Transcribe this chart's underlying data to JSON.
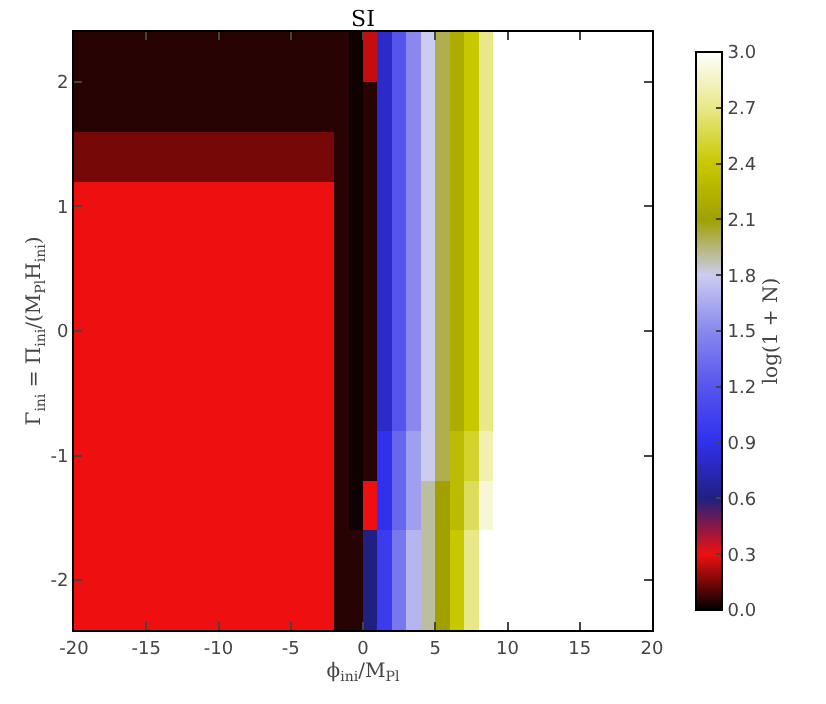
{
  "chart_data": {
    "type": "heatmap",
    "title": "SI",
    "xlabel": "ϕ$_{ini}$/M$_{Pl}$",
    "ylabel": "Γ$_{ini}$ = Π$_{ini}$/(M$_{Pl}$H$_{ini}$)",
    "clabel": "log(1 + N)",
    "x": [
      -19.5,
      -18.5,
      -17.5,
      -16.5,
      -15.5,
      -14.5,
      -13.5,
      -12.5,
      -11.5,
      -10.5,
      -9.5,
      -8.5,
      -7.5,
      -6.5,
      -5.5,
      -4.5,
      -3.5,
      -2.5,
      -1.5,
      -0.5,
      0.5,
      1.5,
      2.5,
      3.5,
      4.5,
      5.5,
      6.5,
      7.5,
      8.5,
      9.5,
      10.5,
      11.5,
      12.5,
      13.5,
      14.5,
      15.5,
      16.5,
      17.5,
      18.5,
      19.5
    ],
    "y": [
      2.2,
      1.8,
      1.4,
      1.0,
      0.6,
      0.2,
      -0.2,
      -0.6,
      -1.0,
      -1.4,
      -1.8,
      -2.2
    ],
    "cells": [
      [
        0.05,
        0.05,
        0.05,
        0.05,
        0.05,
        0.05,
        0.05,
        0.05,
        0.05,
        0.05,
        0.05,
        0.05,
        0.05,
        0.05,
        0.05,
        0.05,
        0.05,
        0.05,
        0.05,
        0.02,
        0.25,
        0.8,
        1.2,
        1.5,
        1.8,
        2.0,
        2.2,
        2.4,
        2.7,
        3.0,
        3.0,
        3.0,
        3.0,
        3.0,
        3.0,
        3.0,
        3.0,
        3.0,
        3.0,
        3.0
      ],
      [
        0.05,
        0.05,
        0.05,
        0.05,
        0.05,
        0.05,
        0.05,
        0.05,
        0.05,
        0.05,
        0.05,
        0.05,
        0.05,
        0.05,
        0.05,
        0.05,
        0.05,
        0.05,
        0.05,
        0.02,
        0.05,
        0.8,
        1.2,
        1.5,
        1.8,
        2.0,
        2.2,
        2.4,
        2.7,
        3.0,
        3.0,
        3.0,
        3.0,
        3.0,
        3.0,
        3.0,
        3.0,
        3.0,
        3.0,
        3.0
      ],
      [
        0.15,
        0.15,
        0.15,
        0.15,
        0.15,
        0.15,
        0.15,
        0.15,
        0.15,
        0.15,
        0.15,
        0.15,
        0.15,
        0.15,
        0.15,
        0.15,
        0.15,
        0.15,
        0.05,
        0.02,
        0.05,
        0.8,
        1.2,
        1.5,
        1.8,
        2.0,
        2.2,
        2.4,
        2.7,
        3.0,
        3.0,
        3.0,
        3.0,
        3.0,
        3.0,
        3.0,
        3.0,
        3.0,
        3.0,
        3.0
      ],
      [
        0.3,
        0.3,
        0.3,
        0.3,
        0.3,
        0.3,
        0.3,
        0.3,
        0.3,
        0.3,
        0.3,
        0.3,
        0.3,
        0.3,
        0.3,
        0.3,
        0.3,
        0.3,
        0.05,
        0.02,
        0.05,
        0.8,
        1.2,
        1.5,
        1.8,
        2.0,
        2.2,
        2.4,
        2.7,
        3.0,
        3.0,
        3.0,
        3.0,
        3.0,
        3.0,
        3.0,
        3.0,
        3.0,
        3.0,
        3.0
      ],
      [
        0.3,
        0.3,
        0.3,
        0.3,
        0.3,
        0.3,
        0.3,
        0.3,
        0.3,
        0.3,
        0.3,
        0.3,
        0.3,
        0.3,
        0.3,
        0.3,
        0.3,
        0.3,
        0.05,
        0.02,
        0.05,
        0.8,
        1.2,
        1.5,
        1.8,
        2.0,
        2.2,
        2.4,
        2.7,
        3.0,
        3.0,
        3.0,
        3.0,
        3.0,
        3.0,
        3.0,
        3.0,
        3.0,
        3.0,
        3.0
      ],
      [
        0.3,
        0.3,
        0.3,
        0.3,
        0.3,
        0.3,
        0.3,
        0.3,
        0.3,
        0.3,
        0.3,
        0.3,
        0.3,
        0.3,
        0.3,
        0.3,
        0.3,
        0.3,
        0.05,
        0.02,
        0.05,
        0.8,
        1.2,
        1.5,
        1.8,
        2.0,
        2.2,
        2.4,
        2.7,
        3.0,
        3.0,
        3.0,
        3.0,
        3.0,
        3.0,
        3.0,
        3.0,
        3.0,
        3.0,
        3.0
      ],
      [
        0.3,
        0.3,
        0.3,
        0.3,
        0.3,
        0.3,
        0.3,
        0.3,
        0.3,
        0.3,
        0.3,
        0.3,
        0.3,
        0.3,
        0.3,
        0.3,
        0.3,
        0.3,
        0.05,
        0.02,
        0.05,
        0.8,
        1.2,
        1.5,
        1.8,
        2.0,
        2.2,
        2.4,
        2.7,
        3.0,
        3.0,
        3.0,
        3.0,
        3.0,
        3.0,
        3.0,
        3.0,
        3.0,
        3.0,
        3.0
      ],
      [
        0.3,
        0.3,
        0.3,
        0.3,
        0.3,
        0.3,
        0.3,
        0.3,
        0.3,
        0.3,
        0.3,
        0.3,
        0.3,
        0.3,
        0.3,
        0.3,
        0.3,
        0.3,
        0.05,
        0.02,
        0.05,
        0.8,
        1.2,
        1.5,
        1.8,
        2.0,
        2.2,
        2.4,
        2.7,
        3.0,
        3.0,
        3.0,
        3.0,
        3.0,
        3.0,
        3.0,
        3.0,
        3.0,
        3.0,
        3.0
      ],
      [
        0.3,
        0.3,
        0.3,
        0.3,
        0.3,
        0.3,
        0.3,
        0.3,
        0.3,
        0.3,
        0.3,
        0.3,
        0.3,
        0.3,
        0.3,
        0.3,
        0.3,
        0.3,
        0.05,
        0.02,
        0.05,
        0.9,
        1.3,
        1.6,
        1.8,
        2.0,
        2.3,
        2.5,
        2.8,
        3.0,
        3.0,
        3.0,
        3.0,
        3.0,
        3.0,
        3.0,
        3.0,
        3.0,
        3.0,
        3.0
      ],
      [
        0.3,
        0.3,
        0.3,
        0.3,
        0.3,
        0.3,
        0.3,
        0.3,
        0.3,
        0.3,
        0.3,
        0.3,
        0.3,
        0.3,
        0.3,
        0.3,
        0.3,
        0.3,
        0.05,
        0.02,
        0.3,
        0.9,
        1.3,
        1.6,
        1.9,
        2.1,
        2.3,
        2.6,
        2.9,
        3.0,
        3.0,
        3.0,
        3.0,
        3.0,
        3.0,
        3.0,
        3.0,
        3.0,
        3.0,
        3.0
      ],
      [
        0.3,
        0.3,
        0.3,
        0.3,
        0.3,
        0.3,
        0.3,
        0.3,
        0.3,
        0.3,
        0.3,
        0.3,
        0.3,
        0.3,
        0.3,
        0.3,
        0.3,
        0.3,
        0.05,
        0.05,
        0.6,
        1.0,
        1.4,
        1.7,
        1.9,
        2.1,
        2.4,
        2.7,
        3.0,
        3.0,
        3.0,
        3.0,
        3.0,
        3.0,
        3.0,
        3.0,
        3.0,
        3.0,
        3.0,
        3.0
      ],
      [
        0.3,
        0.3,
        0.3,
        0.3,
        0.3,
        0.3,
        0.3,
        0.3,
        0.3,
        0.3,
        0.3,
        0.3,
        0.3,
        0.3,
        0.3,
        0.3,
        0.3,
        0.3,
        0.05,
        0.05,
        0.6,
        1.0,
        1.4,
        1.7,
        1.9,
        2.1,
        2.4,
        2.7,
        3.0,
        3.0,
        3.0,
        3.0,
        3.0,
        3.0,
        3.0,
        3.0,
        3.0,
        3.0,
        3.0,
        3.0
      ]
    ],
    "colors": [
      "#000000",
      "#ee1010",
      "#202080",
      "#3030ee",
      "#5555ee",
      "#8888ee",
      "#ccccf0",
      "#a0a000",
      "#c8c800",
      "#e8e888",
      "#ffffff"
    ],
    "xlim": [
      -20,
      20
    ],
    "xticks": [
      -20,
      -15,
      -10,
      -5,
      0,
      5,
      10,
      15,
      20
    ],
    "ylim": [
      -2.4,
      2.4
    ],
    "yticks": [
      -2,
      -1,
      0,
      1,
      2
    ],
    "clim": [
      0,
      3
    ],
    "cticks": [
      {
        "value": 0,
        "label": "0.0"
      },
      0.3,
      0.6,
      0.9,
      1.2,
      1.5,
      1.8,
      2.1,
      2.4,
      2.7,
      {
        "value": 3,
        "label": "3.0"
      }
    ]
  }
}
